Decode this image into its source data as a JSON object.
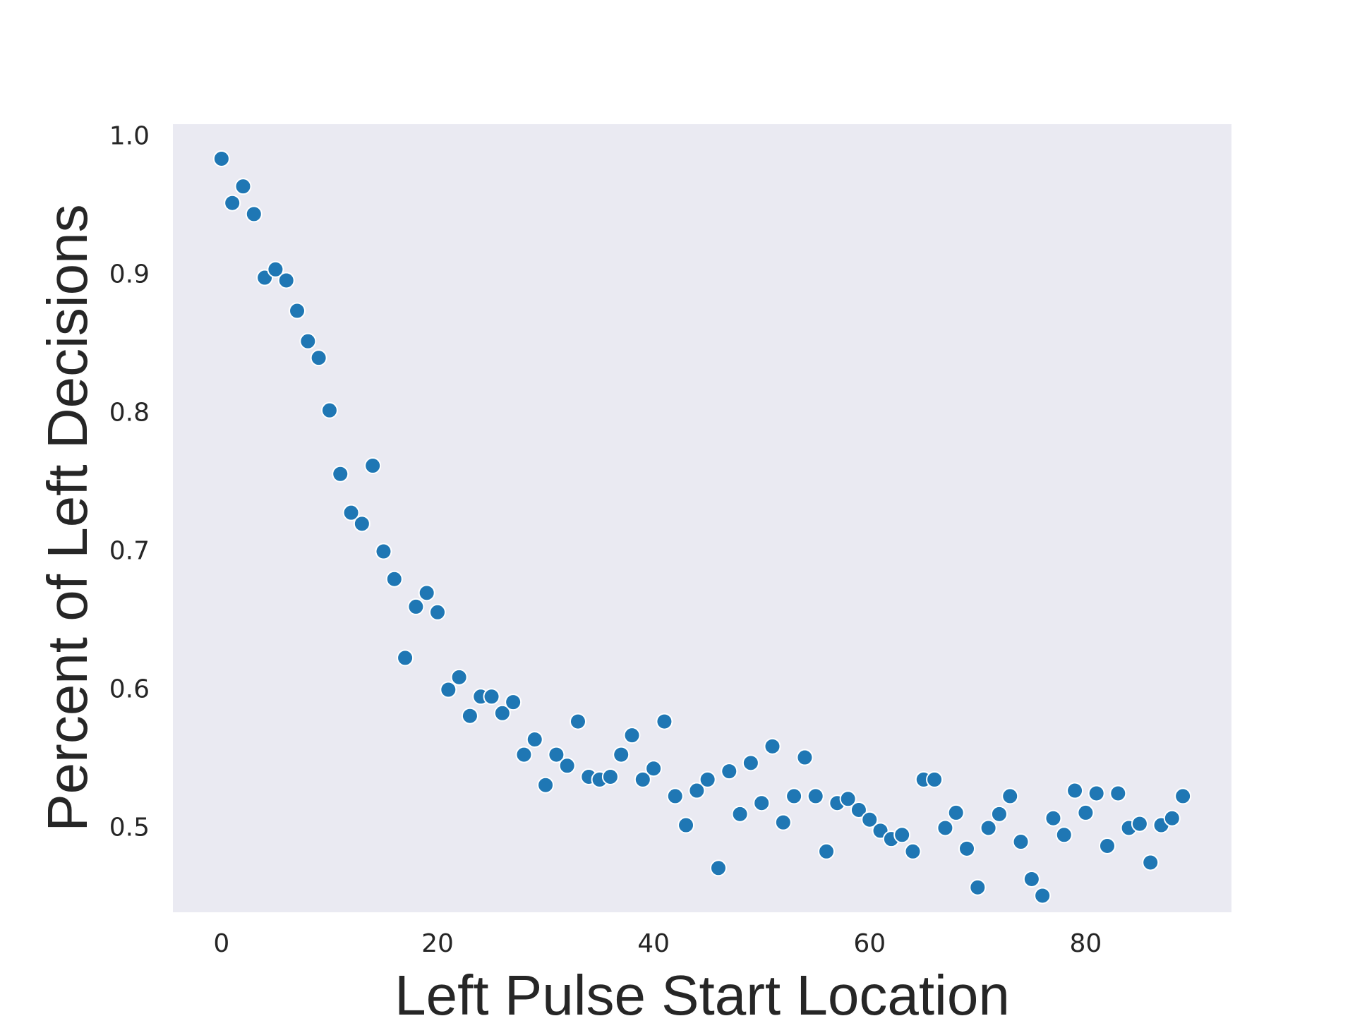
{
  "chart_data": {
    "type": "scatter",
    "title": "",
    "xlabel": "Left Pulse Start Location",
    "ylabel": "Percent of Left Decisions",
    "xlim": [
      -4.5,
      93.5
    ],
    "ylim": [
      0.438,
      1.008
    ],
    "xticks": [
      0,
      20,
      40,
      60,
      80
    ],
    "xtick_labels": [
      "0",
      "20",
      "40",
      "60",
      "80"
    ],
    "yticks": [
      0.5,
      0.6,
      0.7,
      0.8,
      0.9,
      1.0
    ],
    "ytick_labels": [
      "0.5",
      "0.6",
      "0.7",
      "0.8",
      "0.9",
      "1.0"
    ],
    "grid": false,
    "legend": "none",
    "colors": {
      "background": "#eaeaf2",
      "marker": "#1f77b4",
      "marker_edge": "#ffffff",
      "text": "#262626"
    },
    "series": [
      {
        "x": [
          0,
          1,
          2,
          3,
          4,
          5,
          6,
          7,
          8,
          9,
          10,
          11,
          12,
          13,
          14,
          15,
          16,
          17,
          18,
          19,
          20,
          21,
          22,
          23,
          24,
          25,
          26,
          27,
          28,
          29,
          30,
          31,
          32,
          33,
          34,
          35,
          36,
          37,
          38,
          39,
          40,
          41,
          42,
          43,
          44,
          45,
          46,
          47,
          48,
          49,
          50,
          51,
          52,
          53,
          54,
          55,
          56,
          57,
          58,
          59,
          60,
          61,
          62,
          63,
          64,
          65,
          66,
          67,
          68,
          69,
          70,
          71,
          72,
          73,
          74,
          75,
          76,
          77,
          78,
          79,
          80,
          81,
          82,
          83,
          84,
          85,
          86,
          87,
          88,
          89
        ],
        "y": [
          0.983,
          0.951,
          0.963,
          0.943,
          0.897,
          0.903,
          0.895,
          0.873,
          0.851,
          0.839,
          0.801,
          0.755,
          0.727,
          0.719,
          0.761,
          0.699,
          0.679,
          0.622,
          0.659,
          0.669,
          0.655,
          0.599,
          0.608,
          0.58,
          0.594,
          0.594,
          0.582,
          0.59,
          0.552,
          0.563,
          0.53,
          0.552,
          0.544,
          0.576,
          0.536,
          0.534,
          0.536,
          0.552,
          0.566,
          0.534,
          0.542,
          0.576,
          0.522,
          0.501,
          0.526,
          0.534,
          0.47,
          0.54,
          0.509,
          0.546,
          0.517,
          0.558,
          0.503,
          0.522,
          0.55,
          0.522,
          0.482,
          0.517,
          0.52,
          0.512,
          0.505,
          0.497,
          0.491,
          0.494,
          0.482,
          0.534,
          0.534,
          0.499,
          0.51,
          0.484,
          0.456,
          0.499,
          0.509,
          0.522,
          0.489,
          0.462,
          0.45,
          0.506,
          0.494,
          0.526,
          0.51,
          0.524,
          0.486,
          0.524,
          0.499,
          0.502,
          0.474,
          0.501,
          0.506,
          0.522
        ]
      }
    ]
  }
}
